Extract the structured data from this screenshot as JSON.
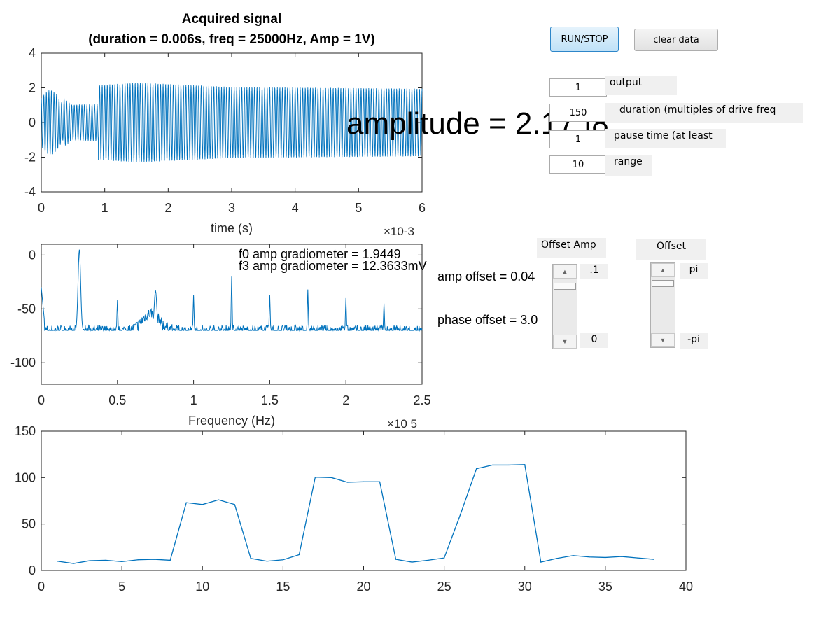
{
  "controls": {
    "run_stop": "RUN/STOP",
    "clear_data": "clear data",
    "output_value": "1",
    "output_label": "output",
    "duration_value": "150",
    "duration_label": "duration (multiples of drive freq",
    "pause_value": "1",
    "pause_label": "pause time (at least",
    "range_value": "10",
    "range_label": "range"
  },
  "readouts": {
    "amplitude": "amplitude = 2.17 |8",
    "f0_amp": "f0 amp gradiometer = 1.9449",
    "f3_amp": "f3 amp gradiometer = 12.3633mV",
    "amp_offset": "amp offset = 0.04",
    "phase_offset": "phase offset = 3.0"
  },
  "sliders": {
    "offset_amp": {
      "label": "Offset Amp",
      "max_label": ".1",
      "min_label": "0",
      "level": 0.92
    },
    "offset_phase": {
      "label": "Offset",
      "max_label": "pi",
      "min_label": "-pi",
      "level": 0.95
    }
  },
  "chart_data": [
    {
      "type": "line",
      "title": "Acquired signal",
      "subtitle": "(duration = 0.006s, freq = 25000Hz, Amp = 1V)",
      "xlabel": "time (s)",
      "ylabel": "",
      "x_exponent": "×10-3",
      "xlim": [
        0,
        6
      ],
      "ylim": [
        -4,
        4
      ],
      "xticks": [
        "0",
        "1",
        "2",
        "3",
        "4",
        "5",
        "6"
      ],
      "yticks": [
        "4",
        "2",
        "0",
        "-2",
        "-4"
      ],
      "signal": {
        "freq_per_unit": 25,
        "envelope": [
          [
            0,
            2.0
          ],
          [
            0.3,
            2.0
          ],
          [
            1.5,
            2.3
          ],
          [
            3.0,
            2.05
          ],
          [
            6.0,
            1.95
          ]
        ],
        "beat_decay_end": 0.9
      }
    },
    {
      "type": "line",
      "title": "",
      "xlabel": "Frequency (Hz)",
      "ylabel": "",
      "x_exponent": "×10 5",
      "xlim": [
        0,
        2.5
      ],
      "ylim": [
        -120,
        10
      ],
      "xticks": [
        "0",
        "0.5",
        "1",
        "1.5",
        "2",
        "2.5"
      ],
      "yticks": [
        "0",
        "-50",
        "-100"
      ],
      "noise_floor": -70,
      "peaks": [
        {
          "x": 0.25,
          "y": 5
        },
        {
          "x": 0.5,
          "y": -42
        },
        {
          "x": 0.75,
          "y": -33
        },
        {
          "x": 1.0,
          "y": -37
        },
        {
          "x": 1.25,
          "y": -20
        },
        {
          "x": 1.5,
          "y": -37
        },
        {
          "x": 1.75,
          "y": -32
        },
        {
          "x": 2.0,
          "y": -40
        },
        {
          "x": 2.25,
          "y": -45
        }
      ]
    },
    {
      "type": "line",
      "title": "",
      "xlabel": "",
      "ylabel": "",
      "xlim": [
        0,
        40
      ],
      "ylim": [
        0,
        150
      ],
      "xticks": [
        "0",
        "5",
        "10",
        "15",
        "20",
        "25",
        "30",
        "35",
        "40"
      ],
      "yticks": [
        "150",
        "100",
        "50",
        "0"
      ],
      "x": [
        1,
        2,
        3,
        4,
        5,
        6,
        7,
        8,
        9,
        10,
        11,
        12,
        13,
        14,
        15,
        16,
        17,
        18,
        19,
        20,
        21,
        22,
        23,
        24,
        25,
        26,
        27,
        28,
        29,
        30,
        31,
        32,
        33,
        34,
        35,
        36,
        37,
        38
      ],
      "values": [
        10,
        7.5,
        10.5,
        11,
        9.5,
        11.5,
        12,
        11,
        73,
        71,
        76,
        71,
        13,
        10,
        11.5,
        17,
        100.5,
        100,
        95,
        95.5,
        95.5,
        12,
        9,
        11,
        13.5,
        60,
        109.5,
        113.5,
        113.5,
        114,
        9,
        13,
        16,
        14.5,
        14,
        15,
        13.5,
        12
      ]
    }
  ]
}
